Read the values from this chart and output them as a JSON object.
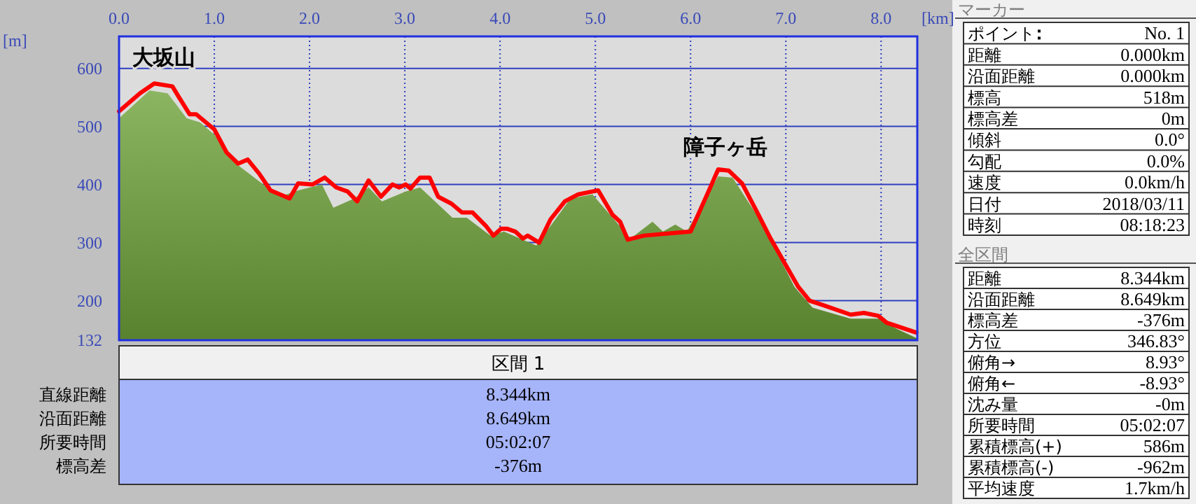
{
  "chart_data": [
    {
      "type": "area",
      "xlabel": "[km]",
      "ylabel": "[m]",
      "xlim": [
        0,
        8.38
      ],
      "ylim": [
        132,
        655
      ],
      "xticks": [
        {
          "value": 0,
          "label": "0.0"
        },
        {
          "value": 1,
          "label": "1.0"
        },
        {
          "value": 2,
          "label": "2.0"
        },
        {
          "value": 3,
          "label": "3.0"
        },
        {
          "value": 4,
          "label": "4.0"
        },
        {
          "value": 5,
          "label": "5.0"
        },
        {
          "value": 6,
          "label": "6.0"
        },
        {
          "value": 7,
          "label": "7.0"
        },
        {
          "value": 8,
          "label": "8.0"
        }
      ],
      "yticks": [
        132,
        200,
        300,
        400,
        500,
        600
      ],
      "grid": true,
      "series": [
        {
          "type": "area",
          "color": "#6fa23a",
          "x": [
            0,
            0.32,
            0.51,
            0.71,
            0.85,
            1.0,
            1.21,
            1.5,
            1.69,
            1.88,
            2.13,
            2.25,
            2.47,
            2.62,
            2.76,
            3.01,
            3.16,
            3.5,
            3.65,
            3.9,
            4.04,
            4.38,
            4.74,
            4.97,
            5.37,
            5.6,
            5.71,
            5.84,
            5.96,
            6.29,
            6.44,
            6.74,
            7.09,
            7.28,
            7.68,
            7.97,
            8.16,
            8.38
          ],
          "values": [
            514,
            562,
            557,
            514,
            507,
            486,
            438,
            402,
            379,
            390,
            400,
            360,
            376,
            395,
            371,
            388,
            395,
            343,
            343,
            312,
            319,
            295,
            376,
            383,
            307,
            336,
            319,
            331,
            319,
            414,
            412,
            336,
            224,
            188,
            169,
            169,
            152,
            135
          ]
        },
        {
          "type": "line",
          "color": "#ff0000",
          "x": [
            0,
            0.22,
            0.37,
            0.56,
            0.63,
            0.74,
            0.81,
            1.0,
            1.13,
            1.25,
            1.35,
            1.47,
            1.59,
            1.79,
            1.88,
            2.03,
            2.16,
            2.28,
            2.4,
            2.5,
            2.62,
            2.75,
            2.87,
            2.94,
            3.01,
            3.06,
            3.16,
            3.26,
            3.35,
            3.49,
            3.6,
            3.71,
            3.85,
            3.93,
            4.01,
            4.07,
            4.16,
            4.24,
            4.29,
            4.41,
            4.53,
            4.68,
            4.82,
            5.03,
            5.18,
            5.26,
            5.34,
            5.51,
            6.0,
            6.22,
            6.29,
            6.4,
            6.54,
            6.69,
            6.84,
            6.99,
            7.13,
            7.25,
            7.38,
            7.68,
            7.82,
            7.97,
            8.06,
            8.37
          ],
          "values": [
            526,
            557,
            574,
            569,
            550,
            521,
            521,
            495,
            455,
            436,
            443,
            419,
            390,
            376,
            402,
            400,
            412,
            395,
            388,
            371,
            407,
            379,
            400,
            395,
            400,
            393,
            412,
            412,
            379,
            367,
            352,
            352,
            329,
            312,
            324,
            324,
            319,
            307,
            312,
            300,
            340,
            371,
            383,
            390,
            348,
            336,
            305,
            312,
            319,
            400,
            426,
            424,
            402,
            355,
            307,
            264,
            224,
            200,
            193,
            176,
            179,
            174,
            162,
            145
          ]
        }
      ],
      "annotations": [
        "大坂山",
        "障子ヶ岳"
      ]
    },
    {
      "type": "other",
      "title": "区間 1",
      "categories": [
        "直線距離",
        "沿面距離",
        "所要時間",
        "標高差"
      ],
      "value_labels": [
        "8.344km",
        "8.649km",
        "05:02:07",
        "-376m"
      ]
    },
    {
      "type": "other",
      "title": "マーカー",
      "categories": [
        "ポイント",
        "距離",
        "沿面距離",
        "標高",
        "標高差",
        "傾斜",
        "勾配",
        "速度",
        "日付",
        "時刻"
      ],
      "value_labels": [
        "No. 1",
        "0.000km",
        "0.000km",
        "518m",
        "0m",
        "0.0°",
        "0.0%",
        "0.0km/h",
        "2018/03/11",
        "08:18:23"
      ]
    },
    {
      "type": "other",
      "title": "全区間",
      "categories": [
        "距離",
        "沿面距離",
        "標高差",
        "方位",
        "俯角→",
        "俯角←",
        "沈み量",
        "所要時間",
        "累積標高(+)",
        "累積標高(-)",
        "平均速度"
      ],
      "value_labels": [
        "8.344km",
        "8.649km",
        "-376m",
        "346.83°",
        "8.93°",
        "-8.93°",
        "-0m",
        "05:02:07",
        "586m",
        "-962m",
        "1.7km/h"
      ]
    }
  ]
}
